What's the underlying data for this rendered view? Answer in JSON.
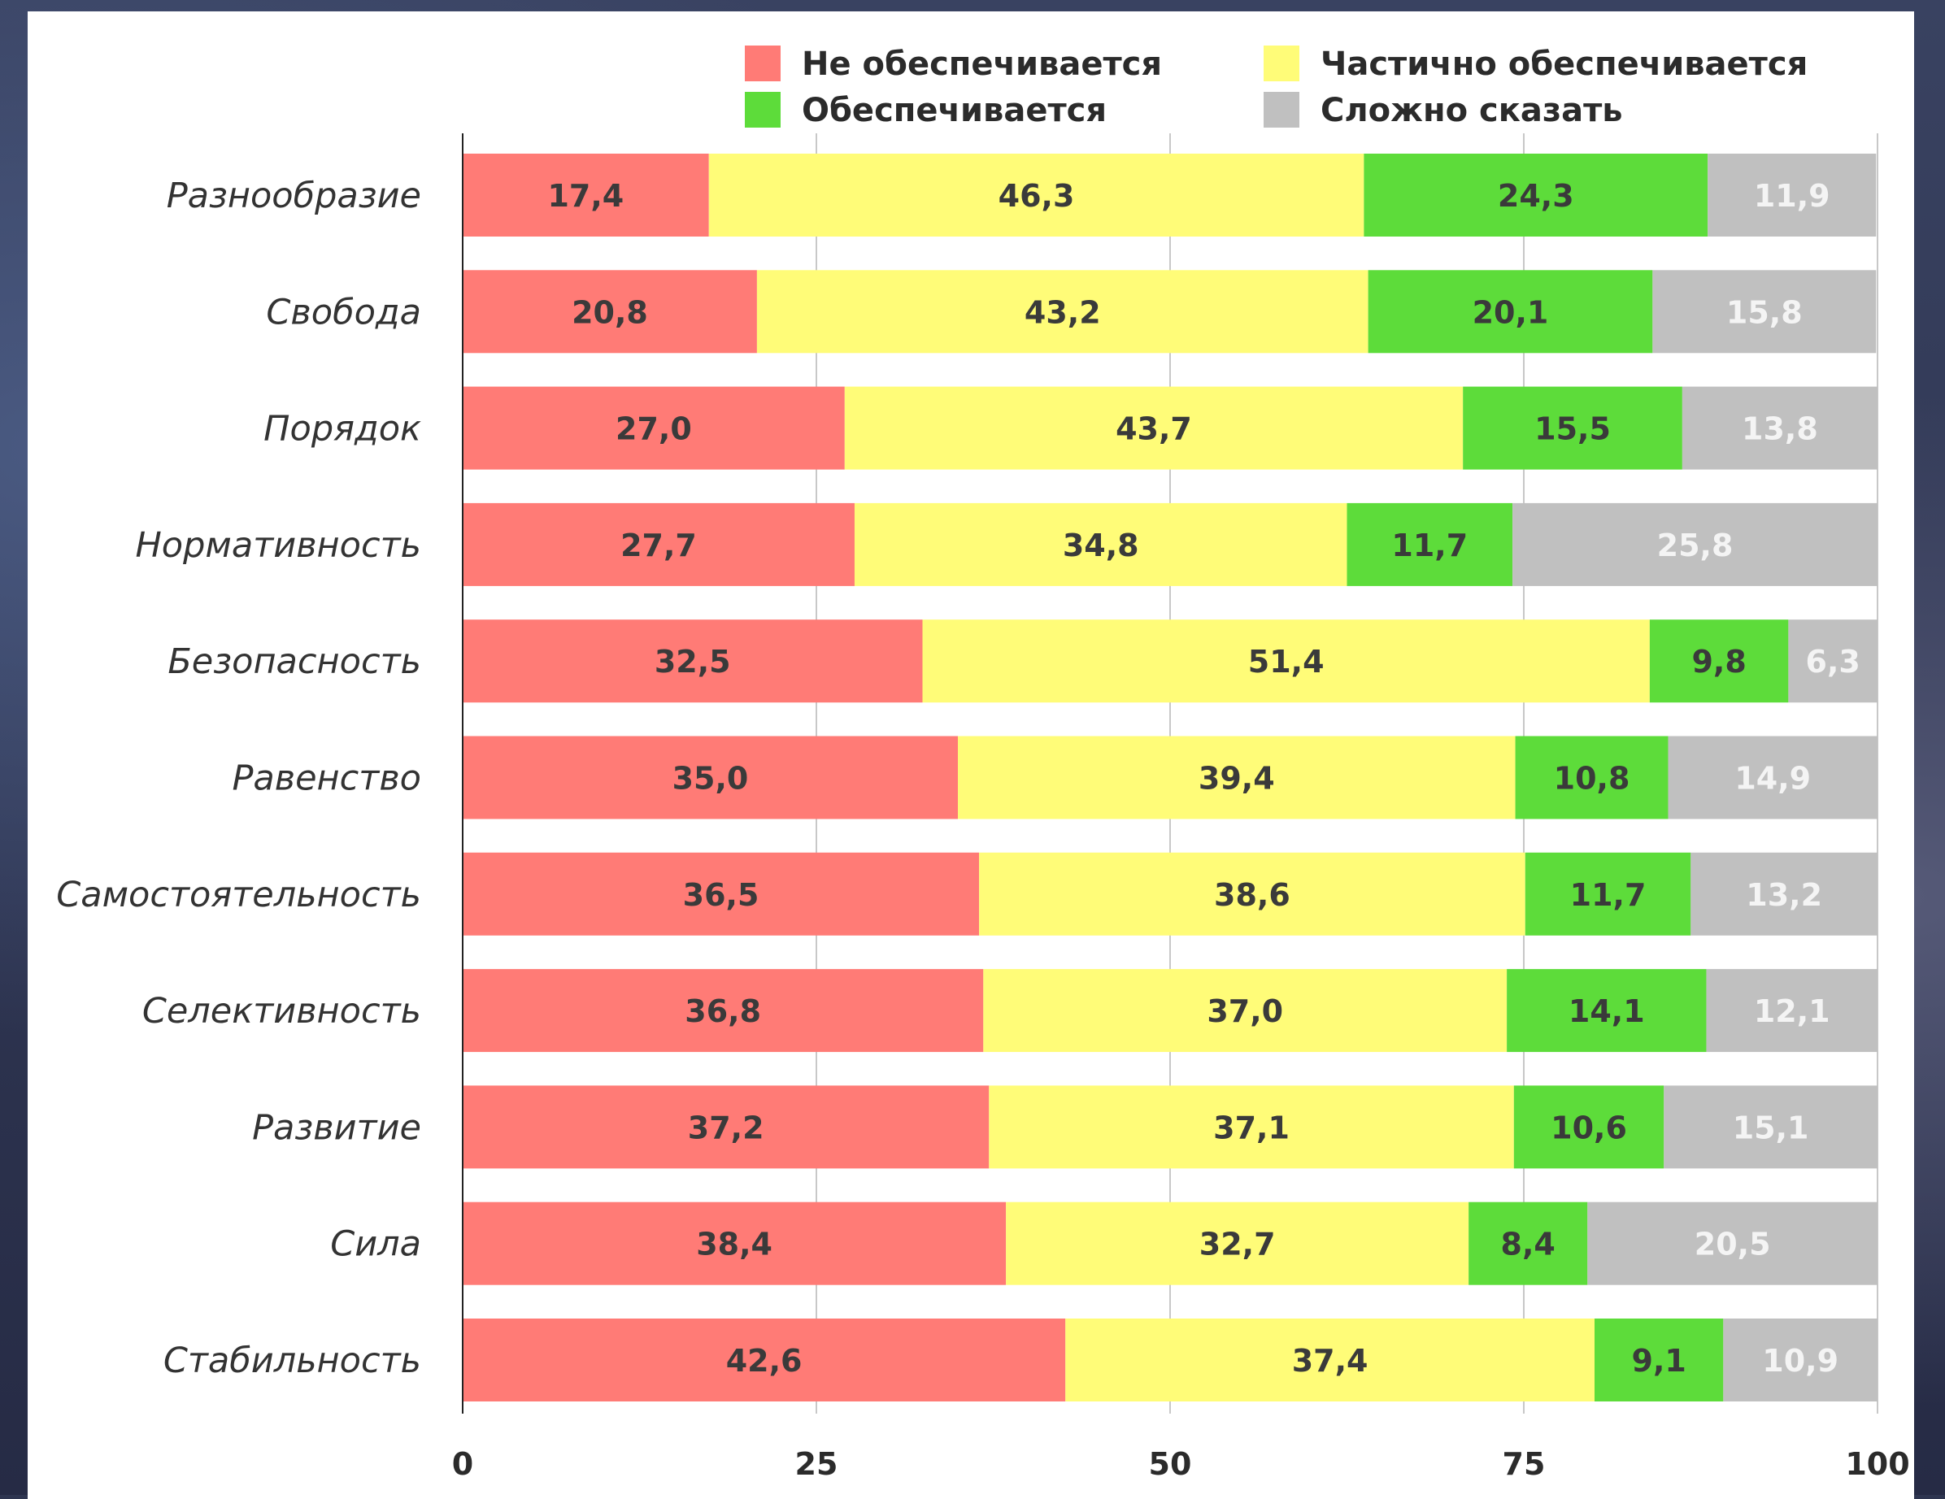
{
  "chart_data": {
    "type": "bar",
    "orientation": "horizontal",
    "stacked": true,
    "title": "",
    "xlabel": "",
    "ylabel": "",
    "xlim": [
      0,
      100
    ],
    "x_ticks": [
      0,
      25,
      50,
      75,
      100
    ],
    "grid": true,
    "legend_position": "top",
    "categories": [
      "Разнообразие",
      "Свобода",
      "Порядок",
      "Нормативность",
      "Безопасность",
      "Равенство",
      "Самостоятельность",
      "Селективность",
      "Развитие",
      "Сила",
      "Стабильность"
    ],
    "series": [
      {
        "name": "Не обеспечивается",
        "color": "#ff7b76",
        "text_color": "#3a3a3a",
        "values": [
          17.4,
          20.8,
          27.0,
          27.7,
          32.5,
          35.0,
          36.5,
          36.8,
          37.2,
          38.4,
          42.6
        ],
        "labels": [
          "17,4",
          "20,8",
          "27,0",
          "27,7",
          "32,5",
          "35,0",
          "36,5",
          "36,8",
          "37,2",
          "38,4",
          "42,6"
        ]
      },
      {
        "name": "Частично обеспечивается",
        "color": "#fffc78",
        "text_color": "#3a3a3a",
        "values": [
          46.3,
          43.2,
          43.7,
          34.8,
          51.4,
          39.4,
          38.6,
          37.0,
          37.1,
          32.7,
          37.4
        ],
        "labels": [
          "46,3",
          "43,2",
          "43,7",
          "34,8",
          "51,4",
          "39,4",
          "38,6",
          "37,0",
          "37,1",
          "32,7",
          "37,4"
        ]
      },
      {
        "name": "Обеспечивается",
        "color": "#5ddc3a",
        "text_color": "#3a3a3a",
        "values": [
          24.3,
          20.1,
          15.5,
          11.7,
          9.8,
          10.8,
          11.7,
          14.1,
          10.6,
          8.4,
          9.1
        ],
        "labels": [
          "24,3",
          "20,1",
          "15,5",
          "11,7",
          "9,8",
          "10,8",
          "11,7",
          "14,1",
          "10,6",
          "8,4",
          "9,1"
        ]
      },
      {
        "name": "Сложно сказать",
        "color": "#c0c0c0",
        "text_color": "#f4f4f4",
        "values": [
          11.9,
          15.8,
          13.8,
          25.8,
          6.3,
          14.9,
          13.2,
          12.1,
          15.1,
          20.5,
          10.9
        ],
        "labels": [
          "11,9",
          "15,8",
          "13,8",
          "25,8",
          "6,3",
          "14,9",
          "13,2",
          "12,1",
          "15,1",
          "20,5",
          "10,9"
        ]
      }
    ]
  }
}
